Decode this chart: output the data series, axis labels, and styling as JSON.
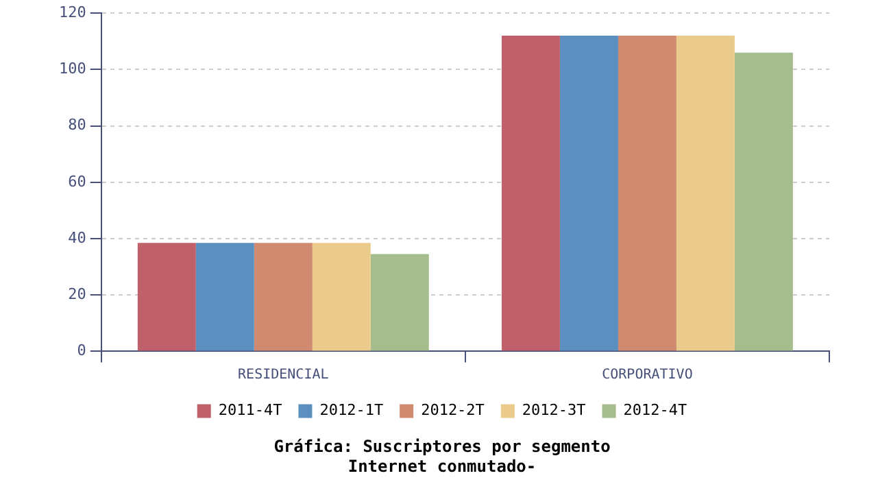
{
  "chart_data": {
    "type": "bar",
    "title": "Gráfica: Suscriptores por segmento",
    "subtitle": "Internet conmutado-",
    "categories": [
      "RESIDENCIAL",
      "CORPORATIVO"
    ],
    "series": [
      {
        "name": "2011-4T",
        "color": "#c0606a",
        "values": [
          38.5,
          112
        ]
      },
      {
        "name": "2012-1T",
        "color": "#5b8fbf",
        "values": [
          38.5,
          112
        ]
      },
      {
        "name": "2012-2T",
        "color": "#d08a70",
        "values": [
          38.5,
          112
        ]
      },
      {
        "name": "2012-3T",
        "color": "#eacb8c",
        "values": [
          38.5,
          112
        ]
      },
      {
        "name": "2012-4T",
        "color": "#a5bd8c",
        "values": [
          34.5,
          106
        ]
      }
    ],
    "ylim": [
      0,
      120
    ],
    "yticks": [
      0,
      20,
      40,
      60,
      80,
      100,
      120
    ],
    "grid": "y",
    "legend": "bottom"
  }
}
